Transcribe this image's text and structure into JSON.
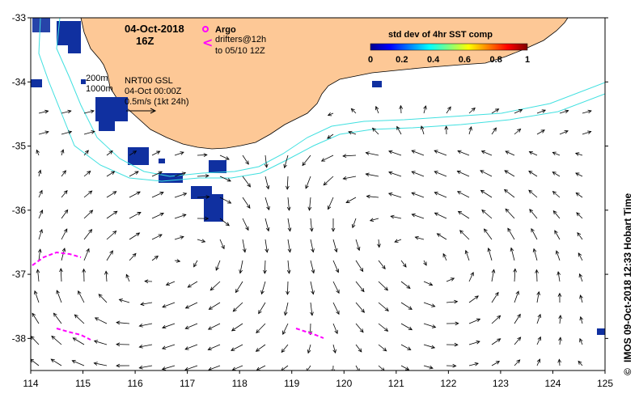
{
  "map": {
    "date_line": "04-Oct-2018",
    "time_line": "16Z",
    "argo_label": "Argo",
    "drifters_label": "drifters@12h",
    "drifters_period": "to 05/10 12Z",
    "isobath_200": "200m",
    "isobath_1000": "1000m",
    "product_label": "NRT00 GSL",
    "product_time": "04-Oct 00:00Z",
    "scale_label": "0.5m/s (1kt 24h)",
    "colorbar": {
      "title": "std dev of 4hr SST comp",
      "ticks": [
        "0",
        "0.2",
        "0.4",
        "0.6",
        "0.8",
        "1"
      ],
      "colors": [
        "#00008f",
        "#0000ff",
        "#0080ff",
        "#00ffff",
        "#80ff80",
        "#ffff00",
        "#ff8000",
        "#ff0000",
        "#800000"
      ]
    },
    "credit": "IMOS 09-Oct-2018 12:33 Hobart Time",
    "copyright_symbol": "©",
    "lon_ticks": [
      "114",
      "115",
      "116",
      "117",
      "118",
      "119",
      "120",
      "121",
      "122",
      "123",
      "124",
      "125"
    ],
    "lat_ticks": [
      "-33",
      "-34",
      "-35",
      "-36",
      "-37",
      "-38"
    ],
    "lon_range": [
      114,
      125
    ],
    "lat_range": [
      -38.5,
      -33
    ],
    "colors": {
      "land": "#fdc896",
      "isobath": "#40e0e0",
      "drifter": "#ff00ff",
      "sst_patch": "#1030a0"
    }
  }
}
